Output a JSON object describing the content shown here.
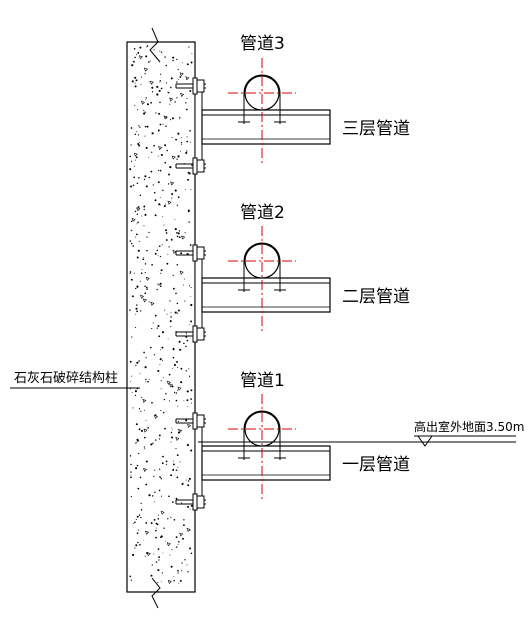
{
  "pipes": [
    {
      "label": "管道3",
      "level_label": "三层管道"
    },
    {
      "label": "管道2",
      "level_label": "二层管道"
    },
    {
      "label": "管道1",
      "level_label": "一层管道"
    }
  ],
  "column_label": "石灰石破碎结构柱",
  "ground_label": "高出室外地面3.50m",
  "colors": {
    "line": "#000000",
    "centerline": "#e00000",
    "background": "#ffffff"
  }
}
